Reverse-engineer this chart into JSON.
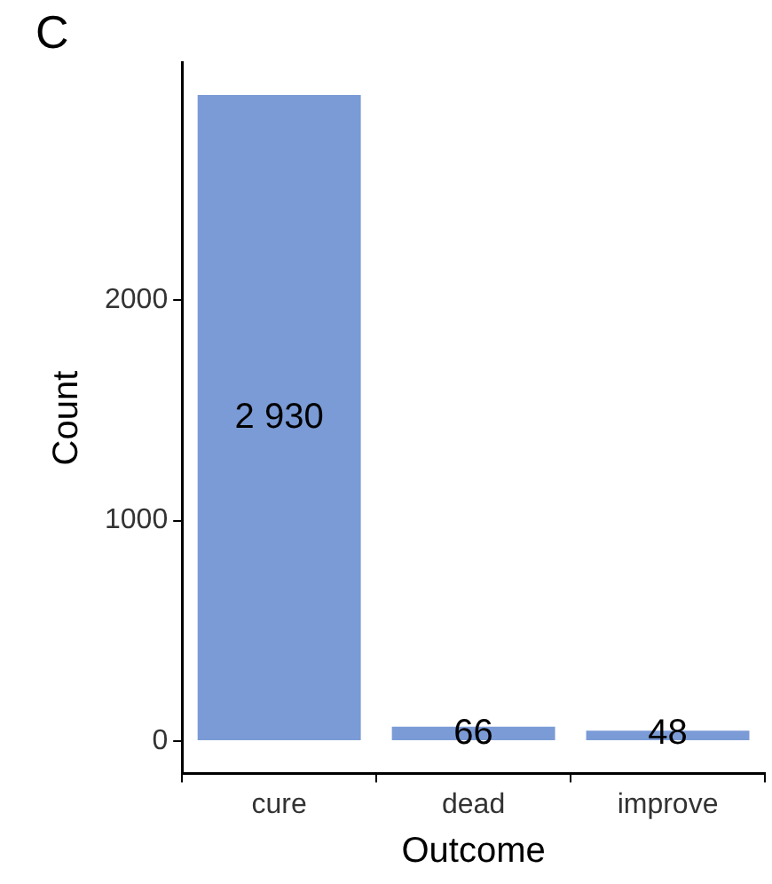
{
  "chart_data": {
    "type": "bar",
    "title": "C",
    "xlabel": "Outcome",
    "ylabel": "Count",
    "categories": [
      "cure",
      "dead",
      "improve"
    ],
    "values": [
      2930,
      66,
      48
    ],
    "value_labels": [
      "2 930",
      "66",
      "48"
    ],
    "color": "#7b9bd6",
    "ylim": [
      -147,
      3077
    ],
    "yticks": [
      0,
      1000,
      2000
    ],
    "grid": false,
    "legend": false
  }
}
